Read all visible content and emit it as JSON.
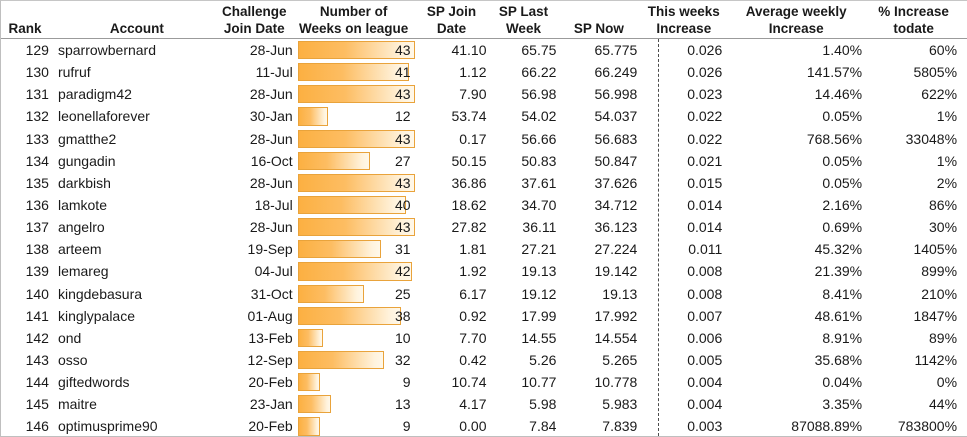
{
  "table": {
    "weeks_max": 43,
    "bar_colors": {
      "fill": "#FCB042",
      "fade": "#FFF8EA",
      "border": "#E9A33B"
    },
    "columns": [
      {
        "key": "rank",
        "line1": "",
        "line2": "Rank"
      },
      {
        "key": "account",
        "line1": "",
        "line2": "Account"
      },
      {
        "key": "join",
        "line1": "Challenge",
        "line2": "Join Date"
      },
      {
        "key": "weeks",
        "line1": "Number of",
        "line2": "Weeks on league"
      },
      {
        "key": "sp_join",
        "line1": "SP Join",
        "line2": "Date"
      },
      {
        "key": "sp_last",
        "line1": "SP Last",
        "line2": "Week"
      },
      {
        "key": "sp_now",
        "line1": "",
        "line2": "SP Now"
      },
      {
        "key": "this_week",
        "line1": "This weeks",
        "line2": "Increase"
      },
      {
        "key": "avg_week",
        "line1": "Average weekly",
        "line2": "Increase"
      },
      {
        "key": "pct_todate",
        "line1": "% Increase",
        "line2": "todate"
      }
    ],
    "rows": [
      {
        "rank": "129",
        "account": "sparrowbernard",
        "join": "28-Jun",
        "weeks": 43,
        "sp_join": "41.10",
        "sp_last": "65.75",
        "sp_now": "65.775",
        "this_week": "0.026",
        "avg_week": "1.40%",
        "pct_todate": "60%"
      },
      {
        "rank": "130",
        "account": "rufruf",
        "join": "11-Jul",
        "weeks": 41,
        "sp_join": "1.12",
        "sp_last": "66.22",
        "sp_now": "66.249",
        "this_week": "0.026",
        "avg_week": "141.57%",
        "pct_todate": "5805%"
      },
      {
        "rank": "131",
        "account": "paradigm42",
        "join": "28-Jun",
        "weeks": 43,
        "sp_join": "7.90",
        "sp_last": "56.98",
        "sp_now": "56.998",
        "this_week": "0.023",
        "avg_week": "14.46%",
        "pct_todate": "622%"
      },
      {
        "rank": "132",
        "account": "leonellaforever",
        "join": "30-Jan",
        "weeks": 12,
        "sp_join": "53.74",
        "sp_last": "54.02",
        "sp_now": "54.037",
        "this_week": "0.022",
        "avg_week": "0.05%",
        "pct_todate": "1%"
      },
      {
        "rank": "133",
        "account": "gmatthe2",
        "join": "28-Jun",
        "weeks": 43,
        "sp_join": "0.17",
        "sp_last": "56.66",
        "sp_now": "56.683",
        "this_week": "0.022",
        "avg_week": "768.56%",
        "pct_todate": "33048%"
      },
      {
        "rank": "134",
        "account": "gungadin",
        "join": "16-Oct",
        "weeks": 27,
        "sp_join": "50.15",
        "sp_last": "50.83",
        "sp_now": "50.847",
        "this_week": "0.021",
        "avg_week": "0.05%",
        "pct_todate": "1%"
      },
      {
        "rank": "135",
        "account": "darkbish",
        "join": "28-Jun",
        "weeks": 43,
        "sp_join": "36.86",
        "sp_last": "37.61",
        "sp_now": "37.626",
        "this_week": "0.015",
        "avg_week": "0.05%",
        "pct_todate": "2%"
      },
      {
        "rank": "136",
        "account": "lamkote",
        "join": "18-Jul",
        "weeks": 40,
        "sp_join": "18.62",
        "sp_last": "34.70",
        "sp_now": "34.712",
        "this_week": "0.014",
        "avg_week": "2.16%",
        "pct_todate": "86%"
      },
      {
        "rank": "137",
        "account": "angelro",
        "join": "28-Jun",
        "weeks": 43,
        "sp_join": "27.82",
        "sp_last": "36.11",
        "sp_now": "36.123",
        "this_week": "0.014",
        "avg_week": "0.69%",
        "pct_todate": "30%"
      },
      {
        "rank": "138",
        "account": "arteem",
        "join": "19-Sep",
        "weeks": 31,
        "sp_join": "1.81",
        "sp_last": "27.21",
        "sp_now": "27.224",
        "this_week": "0.011",
        "avg_week": "45.32%",
        "pct_todate": "1405%"
      },
      {
        "rank": "139",
        "account": "lemareg",
        "join": "04-Jul",
        "weeks": 42,
        "sp_join": "1.92",
        "sp_last": "19.13",
        "sp_now": "19.142",
        "this_week": "0.008",
        "avg_week": "21.39%",
        "pct_todate": "899%"
      },
      {
        "rank": "140",
        "account": "kingdebasura",
        "join": "31-Oct",
        "weeks": 25,
        "sp_join": "6.17",
        "sp_last": "19.12",
        "sp_now": "19.13",
        "this_week": "0.008",
        "avg_week": "8.41%",
        "pct_todate": "210%"
      },
      {
        "rank": "141",
        "account": "kinglypalace",
        "join": "01-Aug",
        "weeks": 38,
        "sp_join": "0.92",
        "sp_last": "17.99",
        "sp_now": "17.992",
        "this_week": "0.007",
        "avg_week": "48.61%",
        "pct_todate": "1847%"
      },
      {
        "rank": "142",
        "account": "ond",
        "join": "13-Feb",
        "weeks": 10,
        "sp_join": "7.70",
        "sp_last": "14.55",
        "sp_now": "14.554",
        "this_week": "0.006",
        "avg_week": "8.91%",
        "pct_todate": "89%"
      },
      {
        "rank": "143",
        "account": "osso",
        "join": "12-Sep",
        "weeks": 32,
        "sp_join": "0.42",
        "sp_last": "5.26",
        "sp_now": "5.265",
        "this_week": "0.005",
        "avg_week": "35.68%",
        "pct_todate": "1142%"
      },
      {
        "rank": "144",
        "account": "giftedwords",
        "join": "20-Feb",
        "weeks": 9,
        "sp_join": "10.74",
        "sp_last": "10.77",
        "sp_now": "10.778",
        "this_week": "0.004",
        "avg_week": "0.04%",
        "pct_todate": "0%"
      },
      {
        "rank": "145",
        "account": "maitre",
        "join": "23-Jan",
        "weeks": 13,
        "sp_join": "4.17",
        "sp_last": "5.98",
        "sp_now": "5.983",
        "this_week": "0.004",
        "avg_week": "3.35%",
        "pct_todate": "44%"
      },
      {
        "rank": "146",
        "account": "optimusprime90",
        "join": "20-Feb",
        "weeks": 9,
        "sp_join": "0.00",
        "sp_last": "7.84",
        "sp_now": "7.839",
        "this_week": "0.003",
        "avg_week": "87088.89%",
        "pct_todate": "783800%"
      }
    ]
  }
}
